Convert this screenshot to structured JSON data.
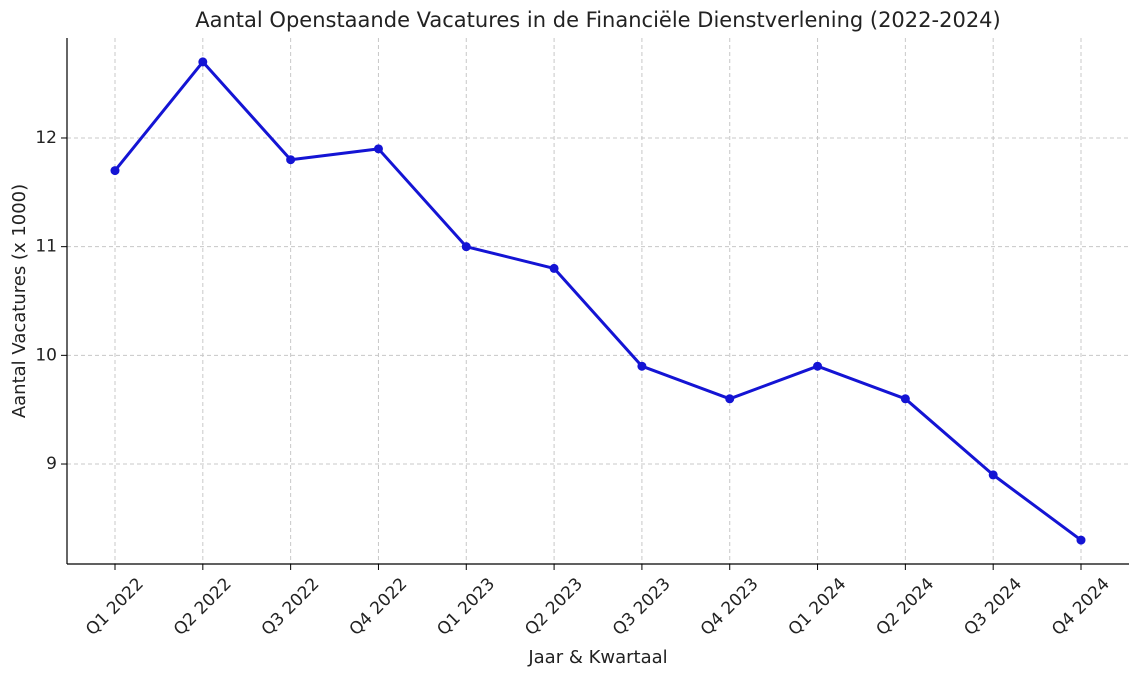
{
  "chart_data": {
    "type": "line",
    "title": "Aantal Openstaande Vacatures in de Financiële Dienstverlening (2022-2024)",
    "x_label": "Jaar & Kwartaal",
    "y_label": "Aantal Vacatures (x 1000)",
    "categories": [
      "Q1 2022",
      "Q2 2022",
      "Q3 2022",
      "Q4 2022",
      "Q1 2023",
      "Q2 2023",
      "Q3 2023",
      "Q4 2023",
      "Q1 2024",
      "Q2 2024",
      "Q3 2024",
      "Q4 2024"
    ],
    "values": [
      11.7,
      12.7,
      11.8,
      11.9,
      11.0,
      10.8,
      9.9,
      9.6,
      9.9,
      9.6,
      8.9,
      8.3
    ],
    "color": "#1414d4",
    "ylim": [
      8.08,
      12.92
    ],
    "yticks": [
      9,
      10,
      11,
      12
    ],
    "grid": true
  }
}
